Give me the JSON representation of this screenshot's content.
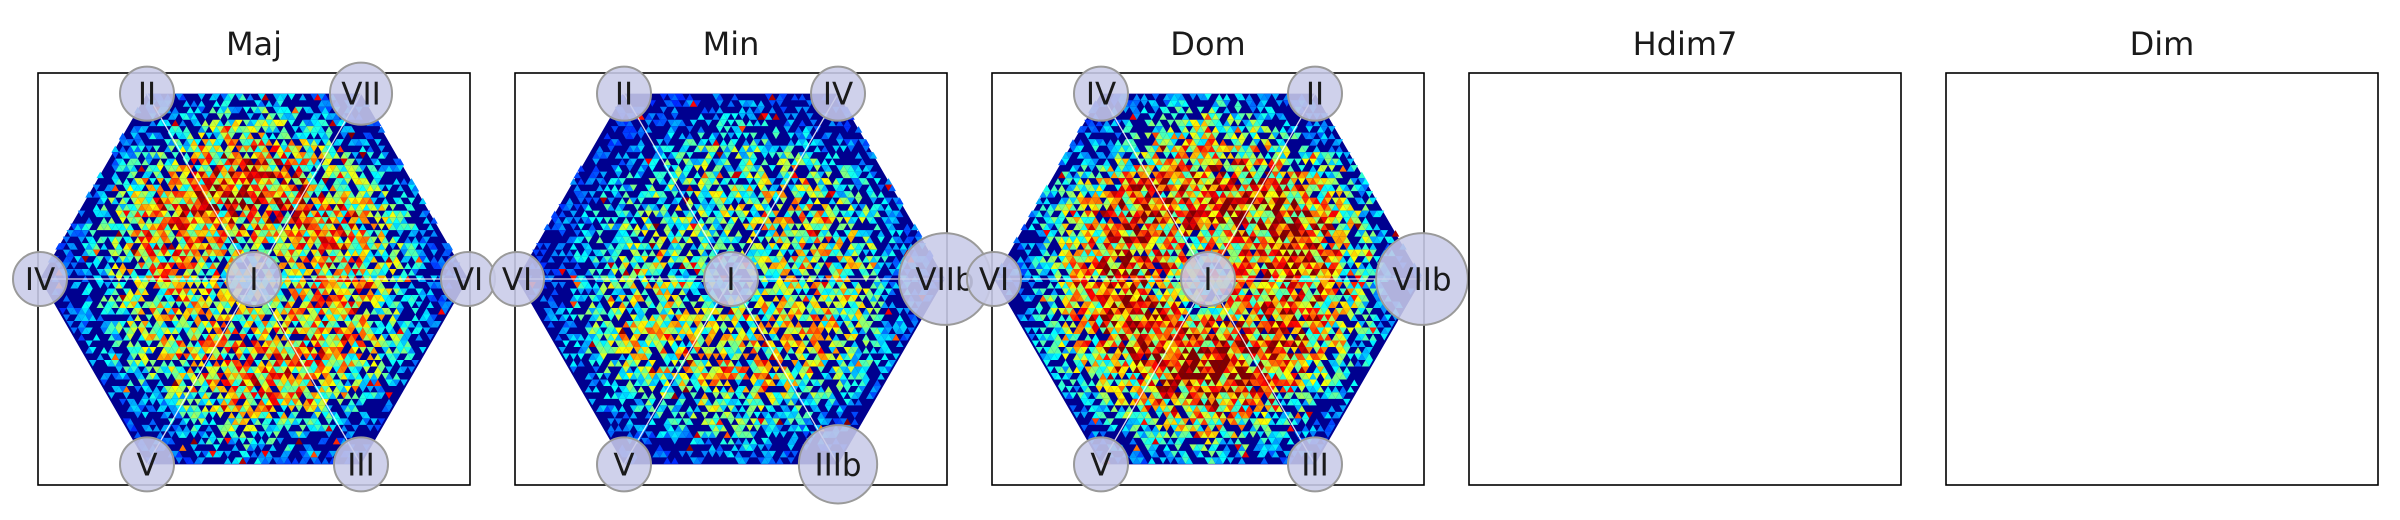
{
  "chart_data": [
    {
      "type": "heatmap",
      "title": "Maj",
      "grid": false,
      "vertex_labels": {
        "top_left": "II",
        "top_right": "VII",
        "left": "IV",
        "right": "VI",
        "bottom_left": "V",
        "bottom_right": "III",
        "center": "I"
      },
      "vertex_marker_scale": {
        "top_left": 1.0,
        "top_right": 1.15,
        "left": 1.0,
        "right": 1.0,
        "bottom_left": 1.0,
        "bottom_right": 1.0,
        "center": 1.0
      },
      "hotspots": [
        {
          "sector": "upper-left",
          "intensity": 0.55
        },
        {
          "sector": "upper-center",
          "intensity": 0.62
        },
        {
          "sector": "upper-right",
          "intensity": 0.5
        },
        {
          "sector": "lower-right",
          "intensity": 0.5
        },
        {
          "sector": "lower-center",
          "intensity": 0.55
        },
        {
          "sector": "lower-left",
          "intensity": 0.38
        }
      ]
    },
    {
      "type": "heatmap",
      "title": "Min",
      "grid": false,
      "vertex_labels": {
        "top_left": "II",
        "top_right": "IV",
        "left": "VI",
        "right": "VIIb",
        "bottom_left": "V",
        "bottom_right": "IIIb",
        "center": "I"
      },
      "vertex_marker_scale": {
        "top_left": 1.0,
        "top_right": 1.0,
        "left": 1.0,
        "right": 1.7,
        "bottom_left": 1.0,
        "bottom_right": 1.45,
        "center": 1.0
      },
      "hotspots": [
        {
          "sector": "upper-left",
          "intensity": 0.3
        },
        {
          "sector": "upper-center",
          "intensity": 0.35
        },
        {
          "sector": "upper-right",
          "intensity": 0.45
        },
        {
          "sector": "lower-right",
          "intensity": 0.45
        },
        {
          "sector": "lower-center",
          "intensity": 0.42
        },
        {
          "sector": "lower-left",
          "intensity": 0.45
        }
      ]
    },
    {
      "type": "heatmap",
      "title": "Dom",
      "grid": false,
      "vertex_labels": {
        "top_left": "IV",
        "top_right": "II",
        "left": "VI",
        "right": "VIIb",
        "bottom_left": "V",
        "bottom_right": "III",
        "center": "I"
      },
      "vertex_marker_scale": {
        "top_left": 1.0,
        "top_right": 1.0,
        "left": 1.0,
        "right": 1.7,
        "bottom_left": 1.0,
        "bottom_right": 1.0,
        "center": 1.0
      },
      "hotspots": [
        {
          "sector": "upper-left",
          "intensity": 0.6
        },
        {
          "sector": "upper-center",
          "intensity": 0.6
        },
        {
          "sector": "upper-right",
          "intensity": 0.68
        },
        {
          "sector": "lower-right",
          "intensity": 0.55
        },
        {
          "sector": "lower-center",
          "intensity": 0.7
        },
        {
          "sector": "lower-left",
          "intensity": 0.6
        }
      ]
    },
    {
      "type": "heatmap",
      "title": "Hdim7",
      "empty": true
    },
    {
      "type": "heatmap",
      "title": "Dim",
      "empty": true
    }
  ],
  "colors": {
    "axes_frame": "#000000",
    "hexagon_background": "#00008f",
    "sector_lines": "#ffffff",
    "marker_fill": "#c8cbe8",
    "marker_edge": "#9a9a9a",
    "label_text": "#1a1a1a",
    "colormap": "jet"
  }
}
